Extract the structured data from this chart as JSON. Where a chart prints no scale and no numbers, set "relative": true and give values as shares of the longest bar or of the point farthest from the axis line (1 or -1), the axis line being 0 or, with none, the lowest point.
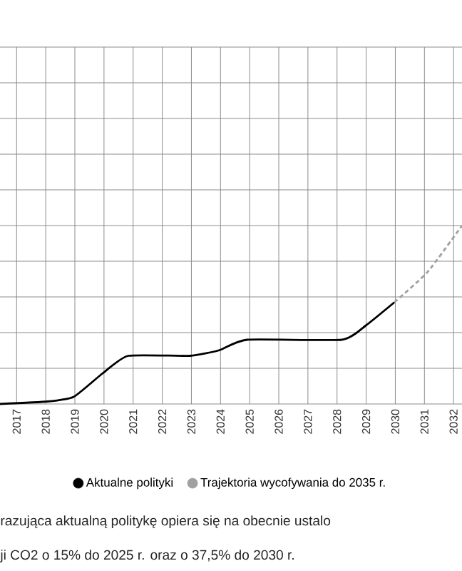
{
  "chart_data": {
    "type": "line",
    "relative": true,
    "x": [
      2016.43,
      2018.06,
      2018.96,
      2019.94,
      2020.83,
      2022.95,
      2023.93,
      2024.91,
      2028.17,
      2028.99,
      2029.97
    ],
    "series": [
      {
        "name": "Aktualne polityki",
        "color": "#000000",
        "line_style": "solid",
        "values": [
          0,
          0.014,
          0.04,
          0.17,
          0.27,
          0.27,
          0.3,
          0.36,
          0.36,
          0.44,
          0.57
        ]
      },
      {
        "name": "Trajektoria wycofywania do 2035 r.",
        "color": "#a0a0a0",
        "line_style": "dashed",
        "x": [
          2029.97,
          2031.11,
          2032.29
        ],
        "values": [
          0.57,
          0.74,
          1.0
        ]
      }
    ],
    "xlim": [
      2016.43,
      2032.29
    ],
    "xticks": [
      2017,
      2018,
      2019,
      2020,
      2021,
      2022,
      2023,
      2024,
      2025,
      2026,
      2027,
      2028,
      2029,
      2030,
      2031,
      2032
    ],
    "tick_labels": "x",
    "grid": true,
    "legend": "bottom",
    "marker": "none",
    "annotations": [
      "razująca aktualną politykę opiera się na obecnie ustalo",
      "ji CO2 o 15% do 2025 r. oraz o 37,5% do 2030 r."
    ]
  }
}
